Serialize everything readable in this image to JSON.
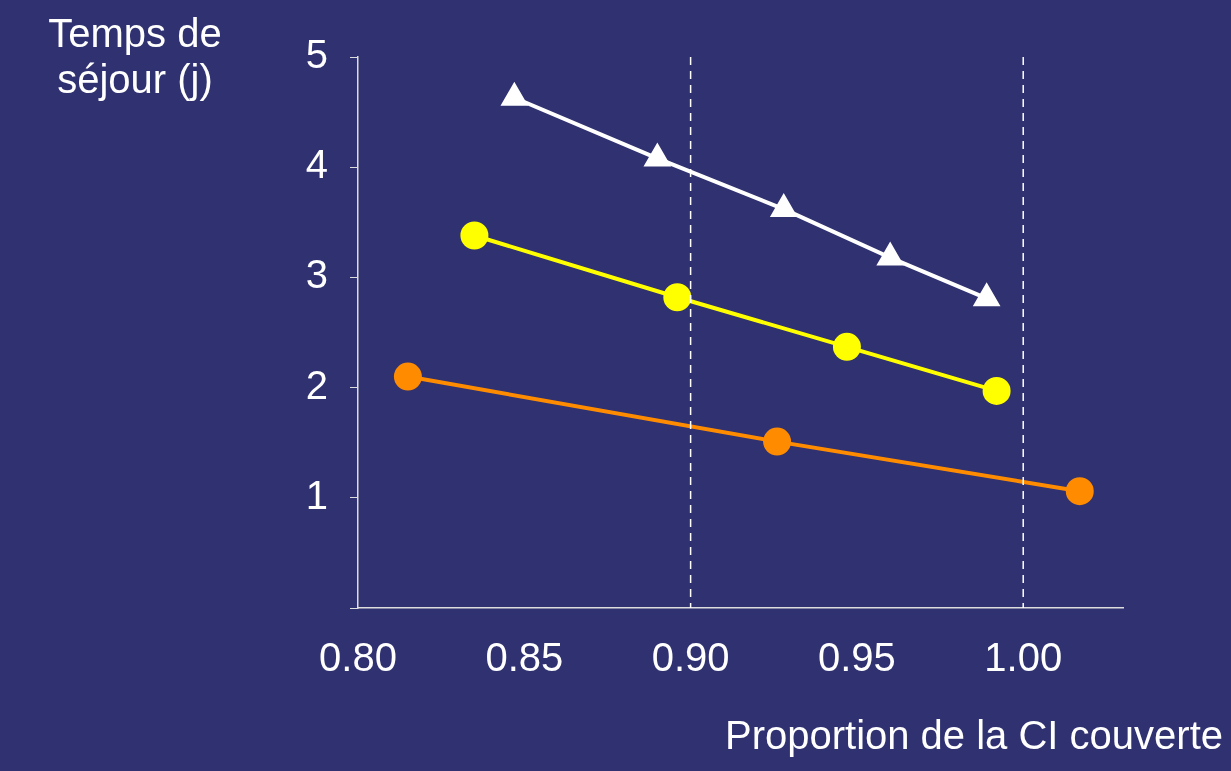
{
  "chart_data": {
    "type": "line",
    "ylabel": "Temps de\nséjour (j)",
    "xlabel": "Proportion de la CI couverte",
    "xlim": [
      0.8,
      1.03
    ],
    "xticks": [
      {
        "value": 0.8,
        "label": "0.80"
      },
      {
        "value": 0.85,
        "label": "0.85"
      },
      {
        "value": 0.9,
        "label": "0.90"
      },
      {
        "value": 0.95,
        "label": "0.95"
      },
      {
        "value": 1,
        "label": "1.00"
      }
    ],
    "ylim": [
      0,
      5
    ],
    "yticks": [
      {
        "value": 0,
        "label": null
      },
      1,
      2,
      3,
      4,
      5
    ],
    "grid": false,
    "legend": false,
    "ref_lines": [
      {
        "axis": "x",
        "value": 0.9,
        "color": "#ffffff",
        "line_style": "dashed"
      },
      {
        "axis": "x",
        "value": 1,
        "color": "#ffffff",
        "line_style": "dashed"
      }
    ],
    "series": [
      {
        "color": "#ffffff",
        "marker": "triangle",
        "x": [
          0.847,
          0.89,
          0.928,
          0.96,
          0.989
        ],
        "values": [
          4.63,
          4.08,
          3.62,
          3.18,
          2.81
        ]
      },
      {
        "color": "#ffff00",
        "marker": "circle",
        "x": [
          0.835,
          0.896,
          0.947,
          0.992
        ],
        "values": [
          3.38,
          2.82,
          2.37,
          1.97
        ]
      },
      {
        "color": "#ff8c00",
        "marker": "circle",
        "x": [
          0.815,
          0.926,
          1.017
        ],
        "values": [
          2.1,
          1.51,
          1.06
        ]
      }
    ]
  }
}
